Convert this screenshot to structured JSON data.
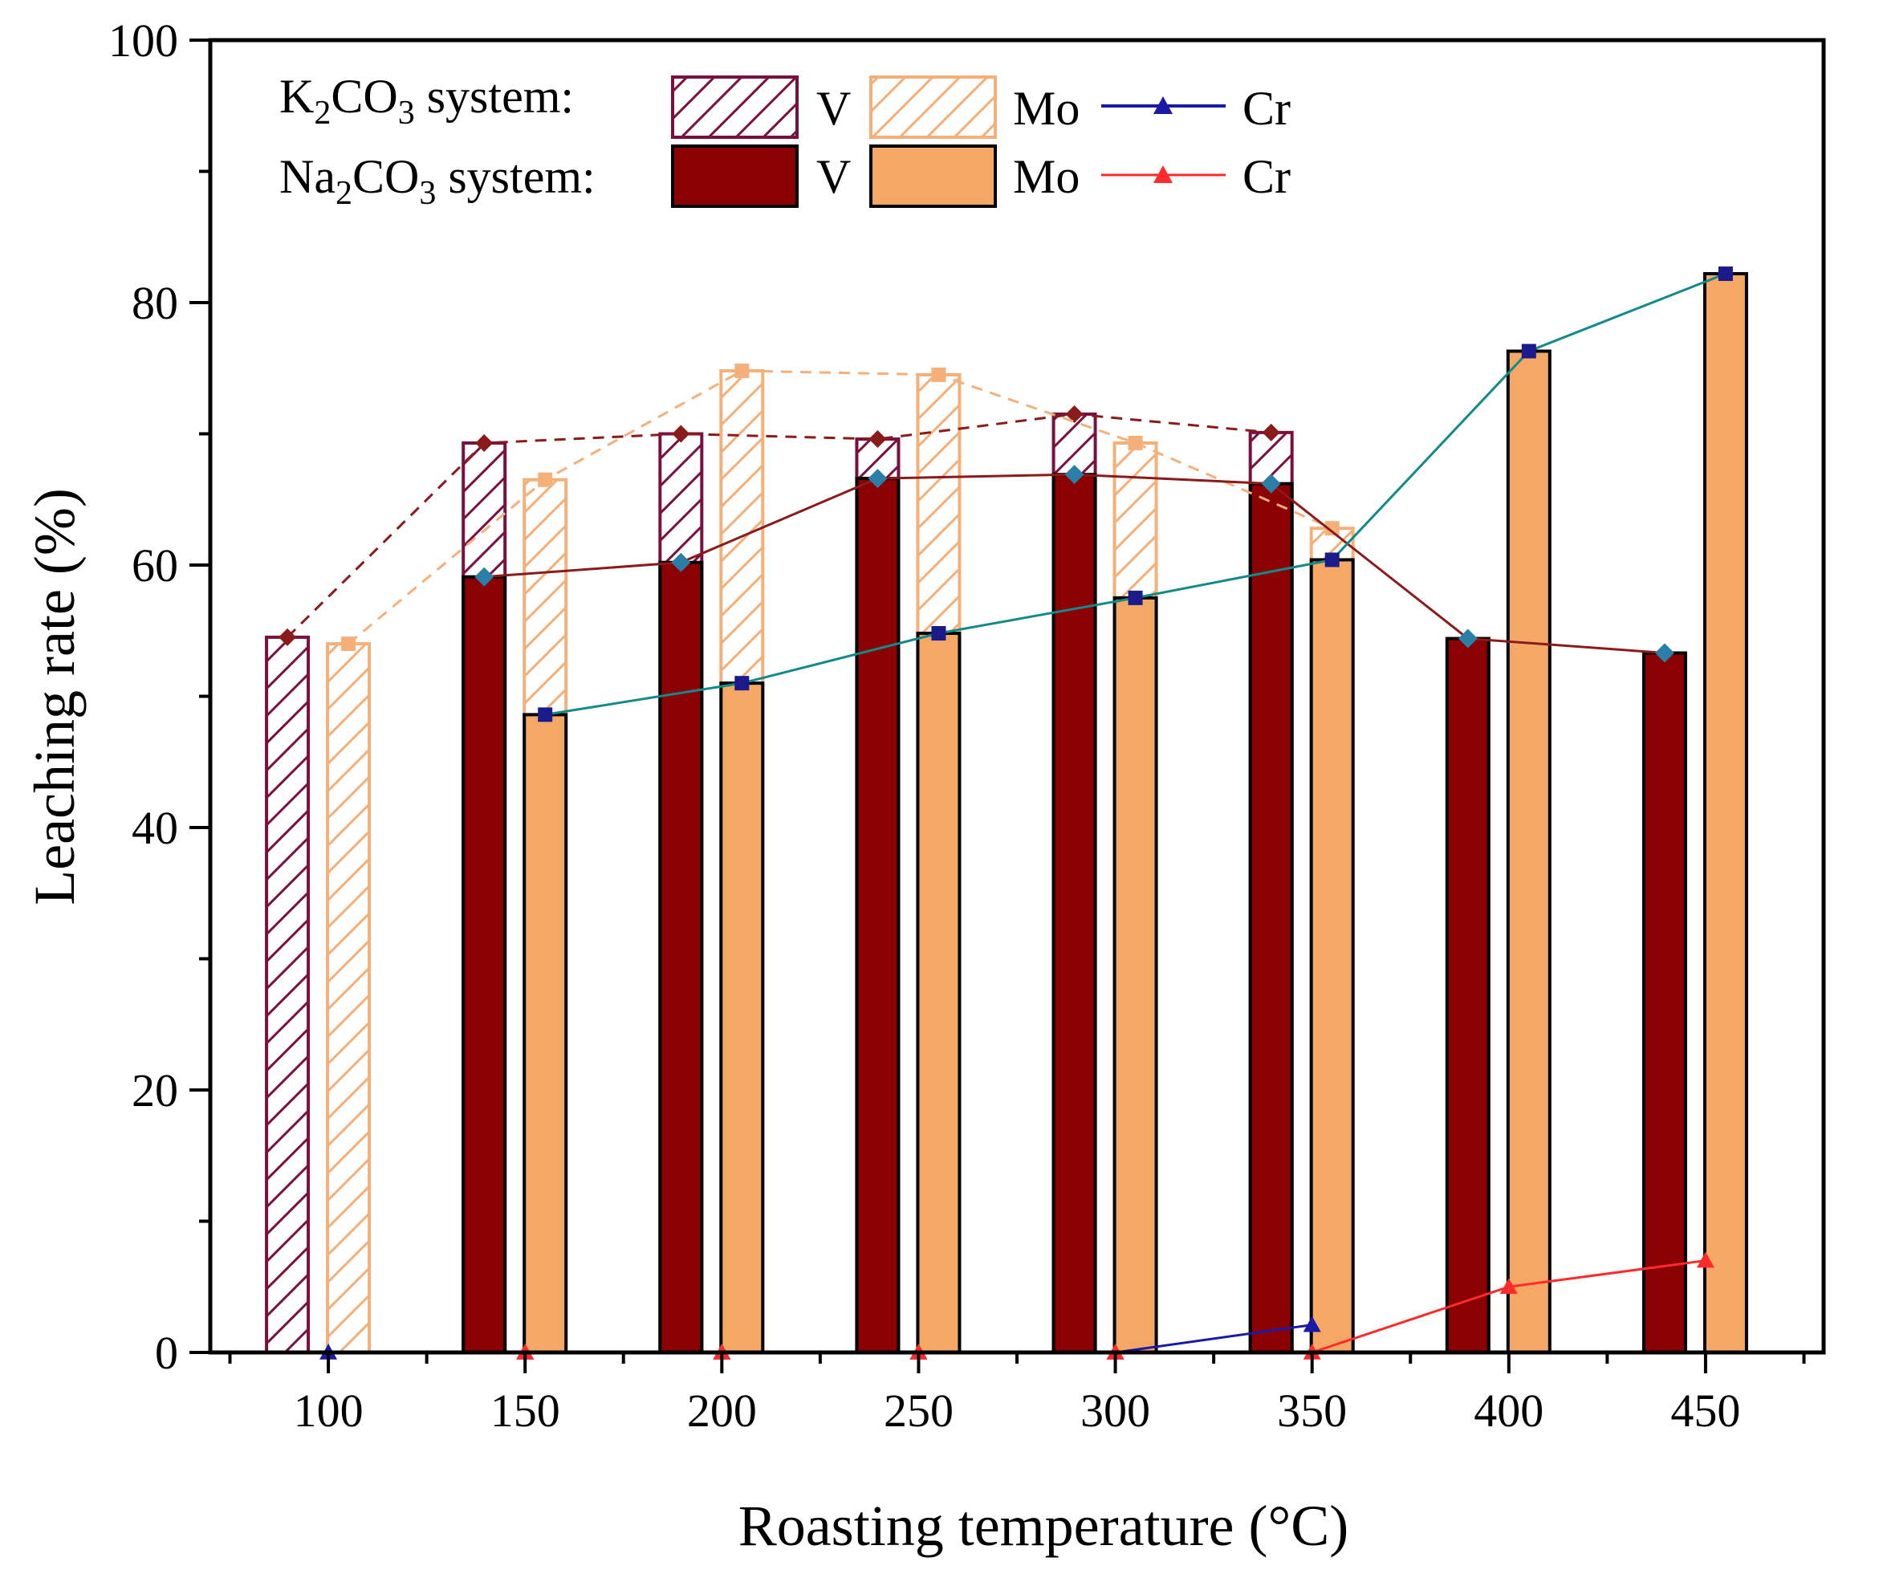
{
  "chart_data": {
    "type": "bar",
    "title": "",
    "xlabel": "Roasting temperature (°C)",
    "ylabel": "Leaching rate (%)",
    "categories": [
      "100",
      "150",
      "200",
      "250",
      "300",
      "350",
      "400",
      "450"
    ],
    "x": [
      100,
      150,
      200,
      250,
      300,
      350,
      400,
      450
    ],
    "ylim": [
      0,
      100
    ],
    "xlim": [
      70,
      480
    ],
    "yticks": [
      "0",
      "20",
      "40",
      "60",
      "80",
      "100"
    ],
    "grid": false,
    "series": [
      {
        "name": "K2CO3 V",
        "kind": "bar",
        "style": "hatched",
        "color": "#7a1040",
        "values": [
          54.5,
          69.3,
          70.0,
          69.6,
          71.5,
          70.1,
          null,
          null
        ]
      },
      {
        "name": "K2CO3 Mo",
        "kind": "bar",
        "style": "hatched",
        "color": "#f5b07a",
        "values": [
          54.0,
          66.5,
          74.8,
          74.5,
          69.3,
          62.8,
          null,
          null
        ]
      },
      {
        "name": "K2CO3 Cr",
        "kind": "line",
        "color": "#1a1aa8",
        "values": [
          0.0,
          0.0,
          0.0,
          0.0,
          0.0,
          2.1,
          null,
          null
        ]
      },
      {
        "name": "Na2CO3 V",
        "kind": "bar",
        "style": "solid",
        "color": "#8b0000",
        "values": [
          null,
          59.1,
          60.2,
          66.6,
          66.9,
          66.2,
          54.4,
          53.3
        ]
      },
      {
        "name": "Na2CO3 Mo",
        "kind": "bar",
        "style": "solid",
        "color": "#f5a766",
        "values": [
          null,
          48.6,
          51.0,
          54.8,
          57.5,
          60.4,
          76.3,
          82.2
        ]
      },
      {
        "name": "Na2CO3 Cr",
        "kind": "line",
        "color": "#ff2a2a",
        "values": [
          null,
          0.0,
          0.0,
          0.0,
          0.0,
          0.0,
          5.0,
          7.0
        ]
      }
    ],
    "legend": {
      "position": "top-left",
      "rows": [
        {
          "label_main": "K",
          "label_sub1": "2",
          "label_mid": "CO",
          "label_sub2": "3",
          "label_tail": " system:",
          "items": [
            "V",
            "Mo",
            "Cr"
          ]
        },
        {
          "label_main": "Na",
          "label_sub1": "2",
          "label_mid": "CO",
          "label_sub2": "3",
          "label_tail": " system:",
          "items": [
            "V",
            "Mo",
            "Cr"
          ]
        }
      ]
    }
  }
}
